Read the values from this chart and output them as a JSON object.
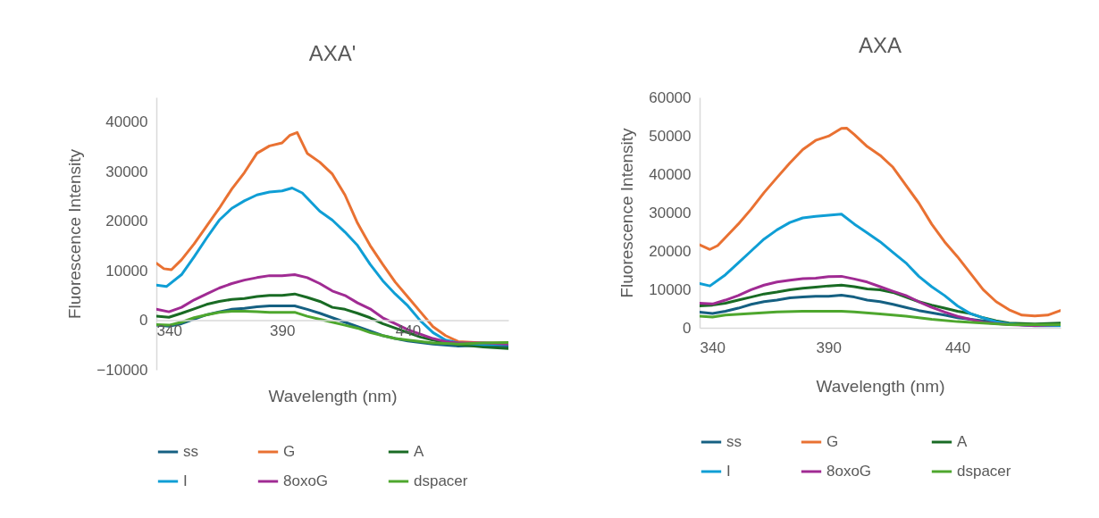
{
  "chart_data": [
    {
      "type": "line",
      "title": "AXA'",
      "xlabel": "Wavelength (nm)",
      "ylabel": "Fluorescence Intensity",
      "xlim": [
        340,
        480
      ],
      "xticks": [
        340,
        390,
        440
      ],
      "ylim": [
        -10000,
        45000
      ],
      "yticks": [
        -10000,
        0,
        10000,
        20000,
        30000,
        40000
      ],
      "grid": false,
      "legend": "bottom",
      "series": [
        {
          "name": "ss",
          "color": "#156082",
          "x": [
            340,
            345,
            350,
            355,
            360,
            365,
            370,
            375,
            380,
            385,
            390,
            395,
            400,
            405,
            410,
            415,
            420,
            425,
            430,
            435,
            440,
            450,
            460,
            470,
            480
          ],
          "values": [
            -1000,
            -1200,
            -700,
            200,
            1100,
            1700,
            2200,
            2400,
            2700,
            2900,
            2900,
            2900,
            2200,
            1400,
            500,
            -400,
            -1300,
            -2200,
            -3100,
            -3700,
            -4200,
            -4800,
            -5200,
            -5100,
            -5200
          ]
        },
        {
          "name": "G",
          "color": "#e97132",
          "x": [
            340,
            343,
            346,
            350,
            355,
            360,
            365,
            370,
            375,
            380,
            385,
            390,
            393,
            396,
            400,
            405,
            410,
            415,
            420,
            425,
            430,
            435,
            440,
            445,
            450,
            455,
            460,
            470,
            480
          ],
          "values": [
            11500,
            10400,
            10200,
            12200,
            15400,
            19000,
            22600,
            26500,
            29800,
            33700,
            35200,
            35800,
            37300,
            37900,
            33700,
            31900,
            29500,
            25300,
            19600,
            15100,
            11300,
            7700,
            4700,
            1700,
            -1300,
            -3100,
            -4300,
            -4600,
            -4600
          ]
        },
        {
          "name": "A",
          "color": "#196b24",
          "x": [
            340,
            345,
            350,
            355,
            360,
            365,
            370,
            375,
            380,
            385,
            390,
            395,
            400,
            405,
            410,
            415,
            420,
            425,
            430,
            435,
            440,
            445,
            450,
            460,
            470,
            480
          ],
          "values": [
            800,
            600,
            1400,
            2300,
            3200,
            3800,
            4200,
            4400,
            4800,
            5000,
            5000,
            5300,
            4600,
            3800,
            2600,
            2200,
            1400,
            500,
            -700,
            -1600,
            -2500,
            -3400,
            -4000,
            -4900,
            -5400,
            -5700
          ]
        },
        {
          "name": "I",
          "color": "#0f9ed5",
          "x": [
            340,
            344,
            350,
            355,
            360,
            365,
            370,
            375,
            380,
            385,
            390,
            394,
            398,
            405,
            410,
            415,
            420,
            425,
            430,
            435,
            440,
            445,
            450,
            455,
            460,
            470,
            480
          ],
          "values": [
            7100,
            6800,
            9200,
            12800,
            16600,
            20200,
            22600,
            24100,
            25300,
            25900,
            26100,
            26700,
            25700,
            22000,
            20200,
            17800,
            15100,
            11300,
            8000,
            5300,
            2900,
            -100,
            -2500,
            -4000,
            -4600,
            -4900,
            -4900
          ]
        },
        {
          "name": "8oxoG",
          "color": "#a02b93",
          "x": [
            340,
            345,
            350,
            355,
            360,
            365,
            370,
            375,
            380,
            385,
            390,
            395,
            400,
            405,
            410,
            415,
            420,
            425,
            430,
            435,
            440,
            445,
            450,
            455,
            460,
            470,
            480
          ],
          "values": [
            2200,
            1700,
            2600,
            4100,
            5300,
            6500,
            7400,
            8100,
            8600,
            9000,
            9000,
            9200,
            8600,
            7400,
            5900,
            5000,
            3500,
            2300,
            500,
            -700,
            -1900,
            -2800,
            -3700,
            -4300,
            -4600,
            -4600,
            -4800
          ]
        },
        {
          "name": "dspacer",
          "color": "#4ea72e",
          "x": [
            340,
            345,
            350,
            355,
            360,
            365,
            370,
            375,
            380,
            385,
            390,
            395,
            400,
            405,
            410,
            415,
            420,
            425,
            430,
            435,
            440,
            450,
            460,
            470,
            480
          ],
          "values": [
            -900,
            -1000,
            -400,
            500,
            1100,
            1600,
            1800,
            1800,
            1700,
            1600,
            1600,
            1600,
            800,
            200,
            -400,
            -1000,
            -1600,
            -2500,
            -3100,
            -3700,
            -4000,
            -4600,
            -4800,
            -4600,
            -4500
          ]
        }
      ]
    },
    {
      "type": "line",
      "title": "AXA",
      "xlabel": "Wavelength (nm)",
      "ylabel": "Fluorescence Intensity",
      "xlim": [
        340,
        480
      ],
      "xticks": [
        340,
        390,
        440
      ],
      "ylim": [
        0,
        60000
      ],
      "yticks": [
        0,
        10000,
        20000,
        30000,
        40000,
        50000,
        60000
      ],
      "grid": false,
      "legend": "bottom",
      "series": [
        {
          "name": "ss",
          "color": "#156082",
          "x": [
            340,
            345,
            350,
            355,
            360,
            365,
            370,
            375,
            380,
            385,
            390,
            395,
            400,
            405,
            410,
            415,
            420,
            425,
            430,
            435,
            440,
            450,
            460,
            470,
            480
          ],
          "values": [
            4100,
            3700,
            4300,
            5100,
            6100,
            6800,
            7200,
            7800,
            8000,
            8200,
            8200,
            8500,
            8000,
            7200,
            6800,
            6100,
            5300,
            4500,
            3900,
            3300,
            2600,
            1800,
            1000,
            500,
            600
          ]
        },
        {
          "name": "G",
          "color": "#e97132",
          "x": [
            340,
            344,
            347,
            350,
            355,
            360,
            365,
            370,
            375,
            380,
            385,
            390,
            395,
            397,
            400,
            405,
            410,
            415,
            420,
            425,
            430,
            435,
            440,
            445,
            450,
            455,
            460,
            465,
            470,
            475,
            480
          ],
          "values": [
            21600,
            20400,
            21400,
            23500,
            27000,
            30900,
            35200,
            39100,
            42900,
            46400,
            48800,
            49900,
            51900,
            52000,
            50300,
            47200,
            44900,
            41800,
            37100,
            32500,
            27000,
            22400,
            18500,
            14200,
            9900,
            6800,
            4700,
            3300,
            3100,
            3300,
            4500
          ]
        },
        {
          "name": "A",
          "color": "#196b24",
          "x": [
            340,
            345,
            350,
            355,
            360,
            365,
            370,
            375,
            380,
            385,
            390,
            395,
            400,
            405,
            410,
            415,
            420,
            425,
            430,
            435,
            440,
            445,
            450,
            455,
            460,
            470,
            480
          ],
          "values": [
            5700,
            5900,
            6400,
            7200,
            8000,
            8800,
            9300,
            9900,
            10300,
            10600,
            10900,
            11100,
            10700,
            10100,
            9900,
            9200,
            8000,
            6800,
            5900,
            5100,
            4300,
            3700,
            2600,
            1800,
            1200,
            1000,
            1200
          ]
        },
        {
          "name": "I",
          "color": "#0f9ed5",
          "x": [
            340,
            344,
            350,
            355,
            360,
            365,
            370,
            375,
            380,
            385,
            390,
            395,
            400,
            405,
            410,
            415,
            420,
            425,
            430,
            435,
            440,
            445,
            450,
            455,
            460,
            470,
            480
          ],
          "values": [
            11500,
            10900,
            13800,
            16900,
            20000,
            23100,
            25500,
            27400,
            28600,
            29000,
            29300,
            29600,
            27000,
            24700,
            22400,
            19600,
            16900,
            13400,
            10700,
            8400,
            5700,
            3700,
            2600,
            1600,
            1000,
            600,
            500
          ]
        },
        {
          "name": "8oxoG",
          "color": "#a02b93",
          "x": [
            340,
            345,
            350,
            355,
            360,
            365,
            370,
            375,
            380,
            385,
            390,
            395,
            400,
            405,
            410,
            415,
            420,
            425,
            430,
            435,
            440,
            445,
            450,
            460,
            470,
            480
          ],
          "values": [
            6400,
            6200,
            7200,
            8400,
            9900,
            11100,
            11900,
            12400,
            12800,
            12900,
            13300,
            13400,
            12700,
            11900,
            10700,
            9500,
            8400,
            6800,
            5300,
            4100,
            3000,
            2200,
            1400,
            800,
            600,
            800
          ]
        },
        {
          "name": "dspacer",
          "color": "#4ea72e",
          "x": [
            340,
            345,
            350,
            360,
            370,
            380,
            390,
            395,
            400,
            410,
            420,
            425,
            430,
            440,
            450,
            460,
            470,
            480
          ],
          "values": [
            3000,
            2800,
            3300,
            3700,
            4100,
            4300,
            4300,
            4300,
            4100,
            3600,
            3000,
            2600,
            2200,
            1600,
            1200,
            800,
            800,
            800
          ]
        }
      ]
    }
  ]
}
